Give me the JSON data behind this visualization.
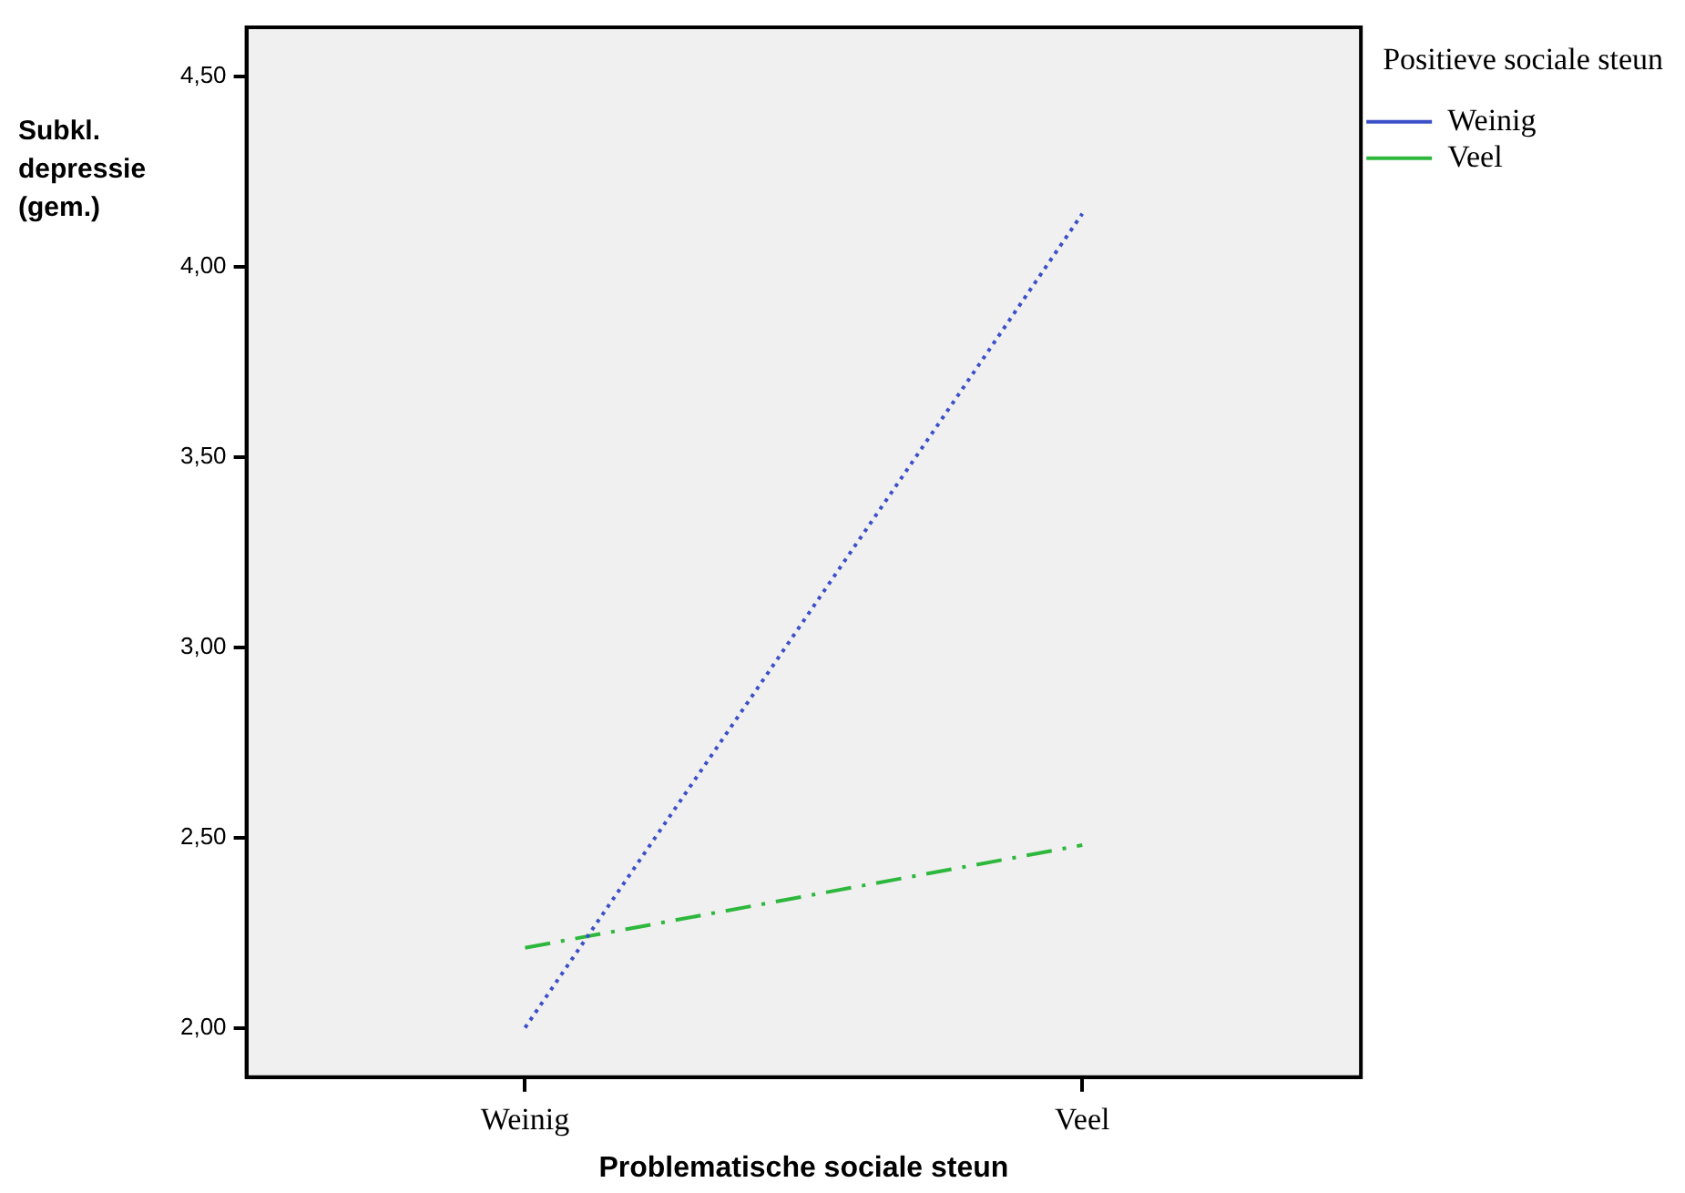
{
  "chart_data": {
    "type": "line",
    "xlabel": "Problematische sociale steun",
    "ylabel": "Subkl. depressie (gem.)",
    "legend_title": "Positieve sociale steun",
    "categories": [
      "Weinig",
      "Veel"
    ],
    "series": [
      {
        "name": "Weinig",
        "color": "#3b4fc8",
        "values": [
          2.0,
          4.14
        ],
        "line_style": "dotted"
      },
      {
        "name": "Veel",
        "color": "#2db83d",
        "values": [
          2.21,
          2.48
        ],
        "line_style": "dashed"
      }
    ],
    "ylim": [
      1.87,
      4.63
    ],
    "yticks": [
      {
        "value": 2,
        "label": "2,00"
      },
      {
        "value": 2.5,
        "label": "2,50"
      },
      {
        "value": 3,
        "label": "3,00"
      },
      {
        "value": 3.5,
        "label": "3,50"
      },
      {
        "value": 4,
        "label": "4,00"
      },
      {
        "value": 4.5,
        "label": "4,50"
      }
    ],
    "grid": false,
    "legend": "top right",
    "marker": "none"
  }
}
